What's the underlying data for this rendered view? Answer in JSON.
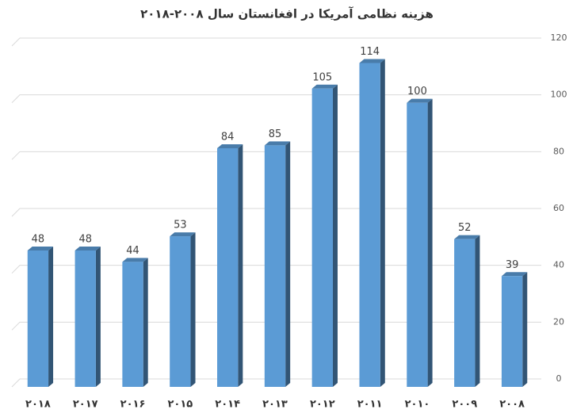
{
  "chart_data": {
    "type": "bar",
    "title": "هزینه نظامی آمریکا در افغانستان سال ۲۰۰۸-۲۰۱۸",
    "categories": [
      "۲۰۱۸",
      "۲۰۱۷",
      "۲۰۱۶",
      "۲۰۱۵",
      "۲۰۱۴",
      "۲۰۱۳",
      "۲۰۱۲",
      "۲۰۱۱",
      "۲۰۱۰",
      "۲۰۰۹",
      "۲۰۰۸"
    ],
    "values": [
      48,
      48,
      44,
      53,
      84,
      85,
      105,
      114,
      100,
      52,
      39
    ],
    "color": "#5b9bd5",
    "ylim": [
      0,
      120
    ],
    "yticks": [
      0,
      20,
      40,
      60,
      80,
      100,
      120
    ],
    "grid": true,
    "y_axis_side": "right"
  }
}
